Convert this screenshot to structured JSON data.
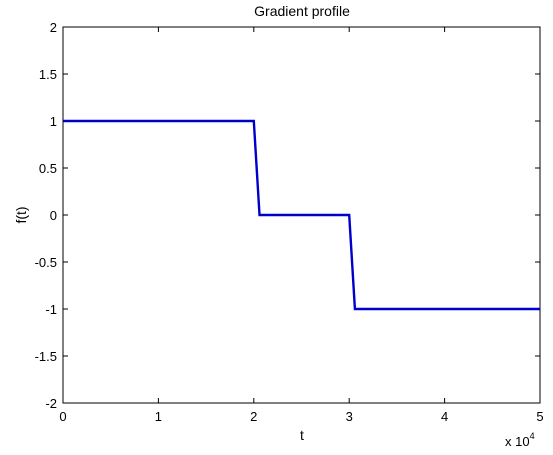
{
  "chart_data": {
    "type": "line",
    "title": "Gradient profile",
    "xlabel": "t",
    "ylabel": "f(t)",
    "x_multiplier_label": "x 10",
    "x_multiplier_exponent": "4",
    "xlim": [
      0,
      5
    ],
    "ylim": [
      -2,
      2
    ],
    "x_ticks": [
      0,
      1,
      2,
      3,
      4,
      5
    ],
    "x_tick_labels": [
      "0",
      "1",
      "2",
      "3",
      "4",
      "5"
    ],
    "y_ticks": [
      2,
      1.5,
      1,
      0.5,
      0,
      -0.5,
      -1,
      -1.5,
      -2
    ],
    "y_tick_labels": [
      "2",
      "1.5",
      "1",
      "0.5",
      "0",
      "-0.5",
      "-1",
      "-1.5",
      "-2"
    ],
    "grid": false,
    "series": [
      {
        "color": "#0000cc",
        "points": [
          [
            0,
            1
          ],
          [
            2.0,
            1
          ],
          [
            2.06,
            0
          ],
          [
            3.0,
            0
          ],
          [
            3.06,
            -1
          ],
          [
            5,
            -1
          ]
        ]
      }
    ]
  }
}
